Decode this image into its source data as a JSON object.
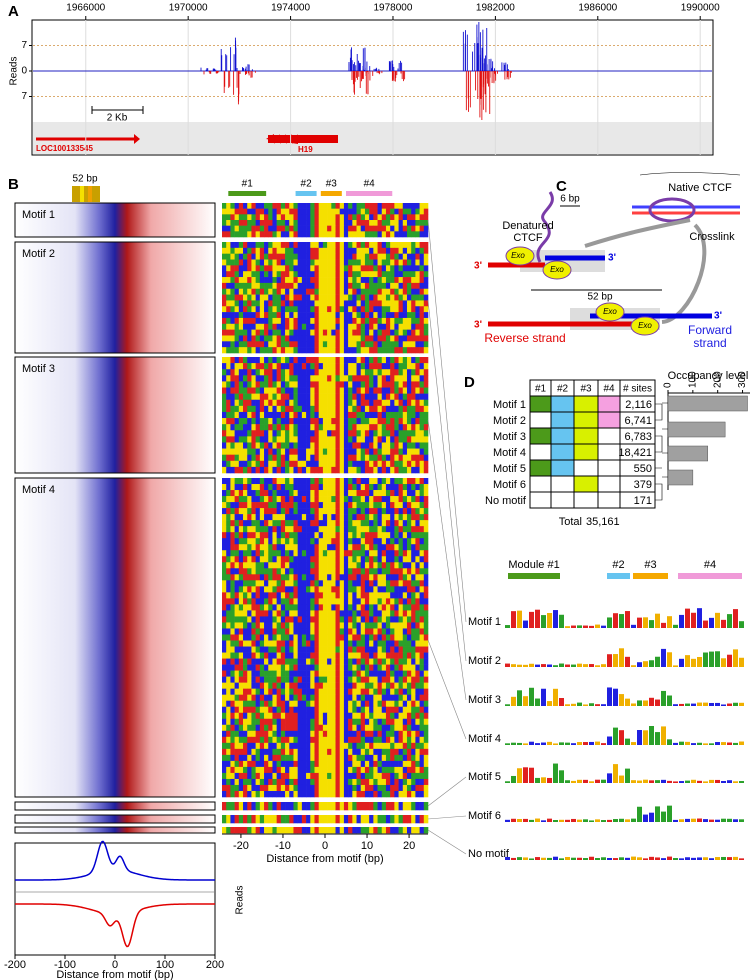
{
  "panel_a": {
    "label": "A",
    "xlim": [
      1963900,
      1990500
    ],
    "xticks": [
      1966000,
      1970000,
      1974000,
      1978000,
      1982000,
      1986000,
      1990000
    ],
    "ylim": [
      -14,
      14
    ],
    "yticks": [
      7,
      0,
      {
        "value": -7,
        "label": "7"
      }
    ],
    "ylabel": "Reads",
    "scale_bar": "2 Kb",
    "genes": [
      "LOC100133545",
      "H19"
    ]
  },
  "panel_b": {
    "label": "B",
    "window": "52 bp",
    "motifs": [
      "Motif 1",
      "Motif 2",
      "Motif 3",
      "Motif 4"
    ],
    "modules": [
      "#1",
      "#2",
      "#3",
      "#4"
    ],
    "module_colors": [
      "#4c9a1a",
      "#66c4f0",
      "#f5a800",
      "#f09ad8"
    ],
    "heat_xlim": [
      -24.5,
      24.5
    ],
    "heat_xticks": [
      -20,
      -10,
      0,
      10,
      20
    ],
    "heat_xlabel": "Distance from motif (bp)",
    "profile_xlim": [
      -200,
      200
    ],
    "profile_xticks": [
      -200,
      -100,
      0,
      100,
      200
    ],
    "profile_xlabel": "Distance from motif (bp)",
    "profile_ylabel": "Reads"
  },
  "panel_c": {
    "label": "C",
    "gap": "6 bp",
    "native": "Native CTCF",
    "denatured": [
      "Denatured",
      "CTCF"
    ],
    "crosslink": "Crosslink",
    "exo": [
      "Exo",
      "Exo",
      "Exo",
      "Exo"
    ],
    "ends": [
      "3'",
      "3'",
      "3'",
      "3'"
    ],
    "width": "52 bp",
    "reverse": "Reverse strand",
    "forward": [
      "Forward",
      "strand"
    ]
  },
  "panel_d": {
    "label": "D",
    "header": [
      "#1",
      "#2",
      "#3",
      "#4",
      "# sites"
    ],
    "module_colors": [
      "#4c9a1a",
      "#66c4f0",
      "#d8f000",
      "#f5a0e0"
    ],
    "rows": [
      {
        "name": "Motif 1",
        "modules": [
          true,
          true,
          true,
          true
        ],
        "sites": "2,116"
      },
      {
        "name": "Motif 2",
        "modules": [
          false,
          true,
          true,
          true
        ],
        "sites": "6,741"
      },
      {
        "name": "Motif 3",
        "modules": [
          true,
          true,
          true,
          false
        ],
        "sites": "6,783"
      },
      {
        "name": "Motif 4",
        "modules": [
          false,
          true,
          true,
          false
        ],
        "sites": "18,421"
      },
      {
        "name": "Motif 5",
        "modules": [
          true,
          true,
          false,
          false
        ],
        "sites": "550"
      },
      {
        "name": "Motif 6",
        "modules": [
          false,
          false,
          true,
          false
        ],
        "sites": "379"
      },
      {
        "name": "No motif",
        "modules": [
          false,
          false,
          false,
          false
        ],
        "sites": "171"
      }
    ],
    "total_label": "Total",
    "total": "35,161",
    "occupancy": {
      "title": "Occupancy level",
      "xlim": [
        0,
        330
      ],
      "xticks": [
        0,
        100,
        200,
        300
      ],
      "values": [
        320,
        230,
        160,
        100
      ],
      "color": "#a0a0a0"
    },
    "logos": {
      "modules": [
        "Module #1",
        "#2",
        "#3",
        "#4"
      ],
      "module_colors": [
        "#4c9a1a",
        "#66c4f0",
        "#f5a800",
        "#f09ad8"
      ],
      "rows": [
        "Motif 1",
        "Motif 2",
        "Motif 3",
        "Motif 4",
        "Motif 5",
        "Motif 6",
        "No motif"
      ]
    }
  }
}
